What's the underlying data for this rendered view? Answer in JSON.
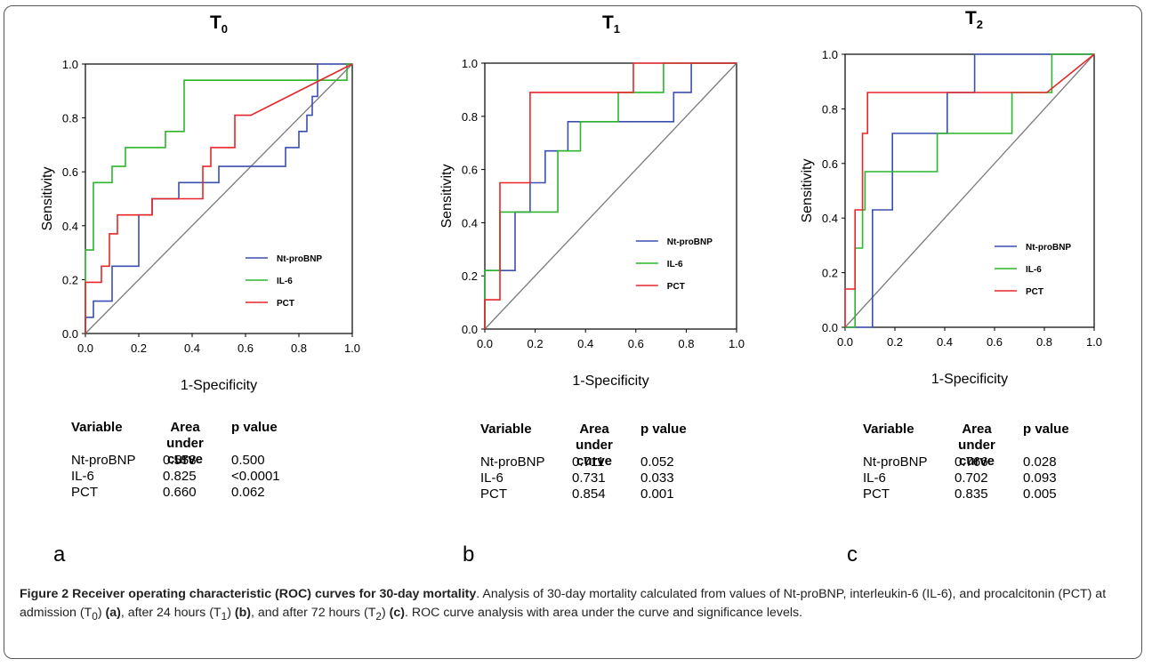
{
  "chart_data": [
    {
      "type": "line",
      "title": "T",
      "title_sub": "0",
      "xlabel": "1-Specificity",
      "ylabel": "Sensitivity",
      "xlim": [
        0,
        1
      ],
      "ylim": [
        0,
        1
      ],
      "xticks": [
        "0.0",
        "0.2",
        "0.4",
        "0.6",
        "0.8",
        "1.0"
      ],
      "yticks": [
        "0.0",
        "0.2",
        "0.4",
        "0.6",
        "0.8",
        "1.0"
      ],
      "legend_position": "bottom-right",
      "series": [
        {
          "name": "Nt-proBNP",
          "color": "#3b4fb0",
          "points": [
            [
              0,
              0
            ],
            [
              0,
              0.06
            ],
            [
              0.03,
              0.06
            ],
            [
              0.03,
              0.12
            ],
            [
              0.1,
              0.12
            ],
            [
              0.1,
              0.25
            ],
            [
              0.2,
              0.25
            ],
            [
              0.2,
              0.44
            ],
            [
              0.25,
              0.44
            ],
            [
              0.25,
              0.5
            ],
            [
              0.35,
              0.5
            ],
            [
              0.35,
              0.56
            ],
            [
              0.5,
              0.56
            ],
            [
              0.5,
              0.62
            ],
            [
              0.75,
              0.62
            ],
            [
              0.75,
              0.69
            ],
            [
              0.8,
              0.69
            ],
            [
              0.8,
              0.75
            ],
            [
              0.83,
              0.75
            ],
            [
              0.83,
              0.81
            ],
            [
              0.85,
              0.81
            ],
            [
              0.85,
              0.88
            ],
            [
              0.87,
              0.88
            ],
            [
              0.87,
              1
            ],
            [
              1,
              1
            ]
          ]
        },
        {
          "name": "IL-6",
          "color": "#2db52d",
          "points": [
            [
              0,
              0
            ],
            [
              0,
              0.31
            ],
            [
              0.03,
              0.31
            ],
            [
              0.03,
              0.56
            ],
            [
              0.1,
              0.56
            ],
            [
              0.1,
              0.62
            ],
            [
              0.15,
              0.62
            ],
            [
              0.15,
              0.69
            ],
            [
              0.3,
              0.69
            ],
            [
              0.3,
              0.75
            ],
            [
              0.37,
              0.75
            ],
            [
              0.37,
              0.94
            ],
            [
              0.98,
              0.94
            ],
            [
              0.98,
              1
            ],
            [
              1,
              1
            ]
          ]
        },
        {
          "name": "PCT",
          "color": "#e8262a",
          "points": [
            [
              0,
              0
            ],
            [
              0,
              0.19
            ],
            [
              0.06,
              0.19
            ],
            [
              0.06,
              0.25
            ],
            [
              0.09,
              0.25
            ],
            [
              0.09,
              0.37
            ],
            [
              0.12,
              0.37
            ],
            [
              0.12,
              0.44
            ],
            [
              0.25,
              0.44
            ],
            [
              0.25,
              0.5
            ],
            [
              0.44,
              0.5
            ],
            [
              0.44,
              0.62
            ],
            [
              0.47,
              0.62
            ],
            [
              0.47,
              0.69
            ],
            [
              0.56,
              0.69
            ],
            [
              0.56,
              0.81
            ],
            [
              0.62,
              0.81
            ],
            [
              0.7,
              0.85
            ],
            [
              1,
              1
            ]
          ]
        }
      ]
    },
    {
      "type": "line",
      "title": "T",
      "title_sub": "1",
      "xlabel": "1-Specificity",
      "ylabel": "Sensitivity",
      "xlim": [
        0,
        1
      ],
      "ylim": [
        0,
        1
      ],
      "xticks": [
        "0.0",
        "0.2",
        "0.4",
        "0.6",
        "0.8",
        "1.0"
      ],
      "yticks": [
        "0.0",
        "0.2",
        "0.4",
        "0.6",
        "0.8",
        "1.0"
      ],
      "legend_position": "bottom-right",
      "series": [
        {
          "name": "Nt-proBNP",
          "color": "#3b4fb0",
          "points": [
            [
              0,
              0
            ],
            [
              0,
              0.22
            ],
            [
              0.12,
              0.22
            ],
            [
              0.12,
              0.44
            ],
            [
              0.18,
              0.44
            ],
            [
              0.18,
              0.55
            ],
            [
              0.24,
              0.55
            ],
            [
              0.24,
              0.67
            ],
            [
              0.33,
              0.67
            ],
            [
              0.33,
              0.78
            ],
            [
              0.75,
              0.78
            ],
            [
              0.75,
              0.89
            ],
            [
              0.82,
              0.89
            ],
            [
              0.82,
              1
            ],
            [
              1,
              1
            ]
          ]
        },
        {
          "name": "IL-6",
          "color": "#2db52d",
          "points": [
            [
              0,
              0
            ],
            [
              0,
              0.22
            ],
            [
              0.06,
              0.22
            ],
            [
              0.06,
              0.44
            ],
            [
              0.29,
              0.44
            ],
            [
              0.29,
              0.67
            ],
            [
              0.38,
              0.67
            ],
            [
              0.38,
              0.78
            ],
            [
              0.53,
              0.78
            ],
            [
              0.53,
              0.89
            ],
            [
              0.71,
              0.89
            ],
            [
              0.71,
              1
            ],
            [
              1,
              1
            ]
          ]
        },
        {
          "name": "PCT",
          "color": "#e8262a",
          "points": [
            [
              0,
              0
            ],
            [
              0,
              0.11
            ],
            [
              0.06,
              0.11
            ],
            [
              0.06,
              0.55
            ],
            [
              0.18,
              0.55
            ],
            [
              0.18,
              0.89
            ],
            [
              0.59,
              0.89
            ],
            [
              0.59,
              1
            ],
            [
              1,
              1
            ]
          ]
        }
      ]
    },
    {
      "type": "line",
      "title": "T",
      "title_sub": "2",
      "xlabel": "1-Specificity",
      "ylabel": "Sensitivity",
      "xlim": [
        0,
        1
      ],
      "ylim": [
        0,
        1
      ],
      "xticks": [
        "0.0",
        "0.2",
        "0.4",
        "0.6",
        "0.8",
        "1.0"
      ],
      "yticks": [
        "0.0",
        "0.2",
        "0.4",
        "0.6",
        "0.8",
        "1.0"
      ],
      "legend_position": "bottom-right",
      "series": [
        {
          "name": "Nt-proBNP",
          "color": "#3b4fb0",
          "points": [
            [
              0,
              0
            ],
            [
              0.11,
              0
            ],
            [
              0.11,
              0.43
            ],
            [
              0.19,
              0.43
            ],
            [
              0.19,
              0.71
            ],
            [
              0.41,
              0.71
            ],
            [
              0.41,
              0.86
            ],
            [
              0.52,
              0.86
            ],
            [
              0.52,
              1
            ],
            [
              1,
              1
            ]
          ]
        },
        {
          "name": "IL-6",
          "color": "#2db52d",
          "points": [
            [
              0,
              0
            ],
            [
              0.04,
              0
            ],
            [
              0.04,
              0.29
            ],
            [
              0.07,
              0.29
            ],
            [
              0.07,
              0.43
            ],
            [
              0.08,
              0.43
            ],
            [
              0.08,
              0.57
            ],
            [
              0.37,
              0.57
            ],
            [
              0.37,
              0.71
            ],
            [
              0.67,
              0.71
            ],
            [
              0.67,
              0.86
            ],
            [
              0.83,
              0.86
            ],
            [
              0.83,
              1
            ],
            [
              1,
              1
            ]
          ]
        },
        {
          "name": "PCT",
          "color": "#e8262a",
          "points": [
            [
              0,
              0
            ],
            [
              0,
              0.14
            ],
            [
              0.04,
              0.14
            ],
            [
              0.04,
              0.43
            ],
            [
              0.07,
              0.43
            ],
            [
              0.07,
              0.71
            ],
            [
              0.09,
              0.71
            ],
            [
              0.09,
              0.86
            ],
            [
              0.81,
              0.86
            ],
            [
              1,
              1
            ]
          ]
        }
      ]
    }
  ],
  "tables": [
    {
      "headers": [
        "Variable",
        "Area under curve",
        "p value"
      ],
      "rows": [
        [
          "Nt-proBNP",
          "0.558",
          "0.500"
        ],
        [
          "IL-6",
          "0.825",
          "<0.0001"
        ],
        [
          "PCT",
          "0.660",
          "0.062"
        ]
      ],
      "panel_label": "a"
    },
    {
      "headers": [
        "Variable",
        "Area under curve",
        "p value"
      ],
      "rows": [
        [
          "Nt-proBNP",
          "0.711",
          "0.052"
        ],
        [
          "IL-6",
          "0.731",
          "0.033"
        ],
        [
          "PCT",
          "0.854",
          "0.001"
        ]
      ],
      "panel_label": "b"
    },
    {
      "headers": [
        "Variable",
        "Area under curve",
        "p value"
      ],
      "rows": [
        [
          "Nt-proBNP",
          "0.766",
          "0.028"
        ],
        [
          "IL-6",
          "0.702",
          "0.093"
        ],
        [
          "PCT",
          "0.835",
          "0.005"
        ]
      ],
      "panel_label": "c"
    }
  ],
  "caption": {
    "title": "Figure 2 Receiver operating characteristic (ROC) curves for 30-day mortality",
    "p1": ". Analysis of 30-day mortality calculated from values of Nt-proBNP, interleukin-6 (IL-6), and procalcitonin (PCT) at admission (T",
    "s0": "0",
    "p2": ") ",
    "a": "(a)",
    "p3": ", after 24 hours (T",
    "s1": "1",
    "p4": ") ",
    "b": "(b)",
    "p5": ", and after 72 hours (T",
    "s2": "2",
    "p6": ") ",
    "c": "(c)",
    "p7": ". ROC curve analysis with area under the curve and significance levels."
  }
}
